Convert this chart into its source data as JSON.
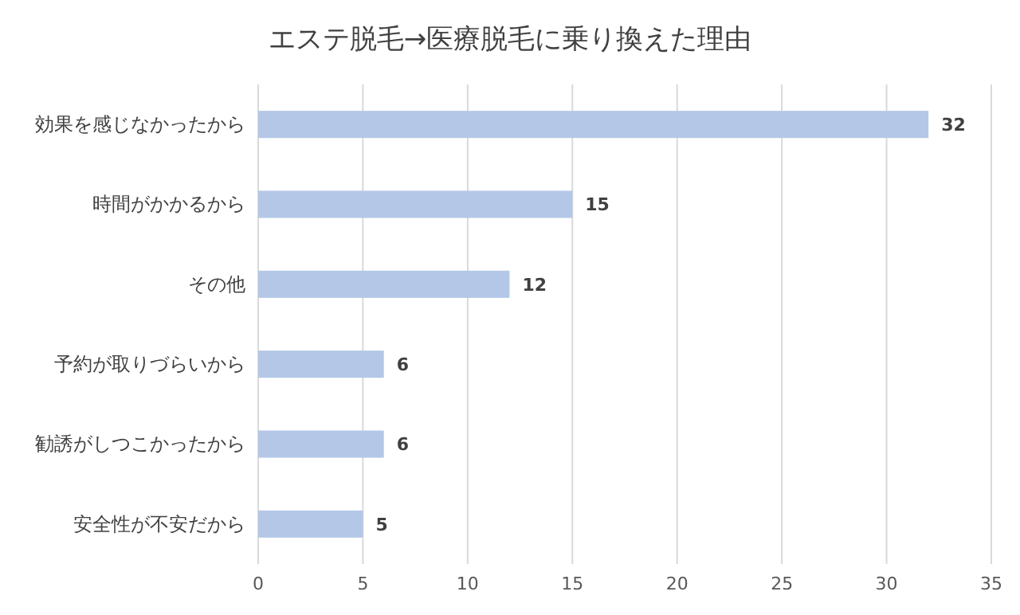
{
  "chart_data": {
    "type": "bar",
    "orientation": "horizontal",
    "title": "エステ脱毛→医療脱毛に乗り換えた理由",
    "categories": [
      "効果を感じなかったから",
      "時間がかかるから",
      "その他",
      "予約が取りづらいから",
      "勧誘がしつこかったから",
      "安全性が不安だから"
    ],
    "values": [
      32,
      15,
      12,
      6,
      6,
      5
    ],
    "color": "#b4c7e7",
    "xlim": [
      0,
      35
    ],
    "xticks": [
      0,
      5,
      10,
      15,
      20,
      25,
      30,
      35
    ],
    "grid": "x",
    "data_labels": true
  }
}
